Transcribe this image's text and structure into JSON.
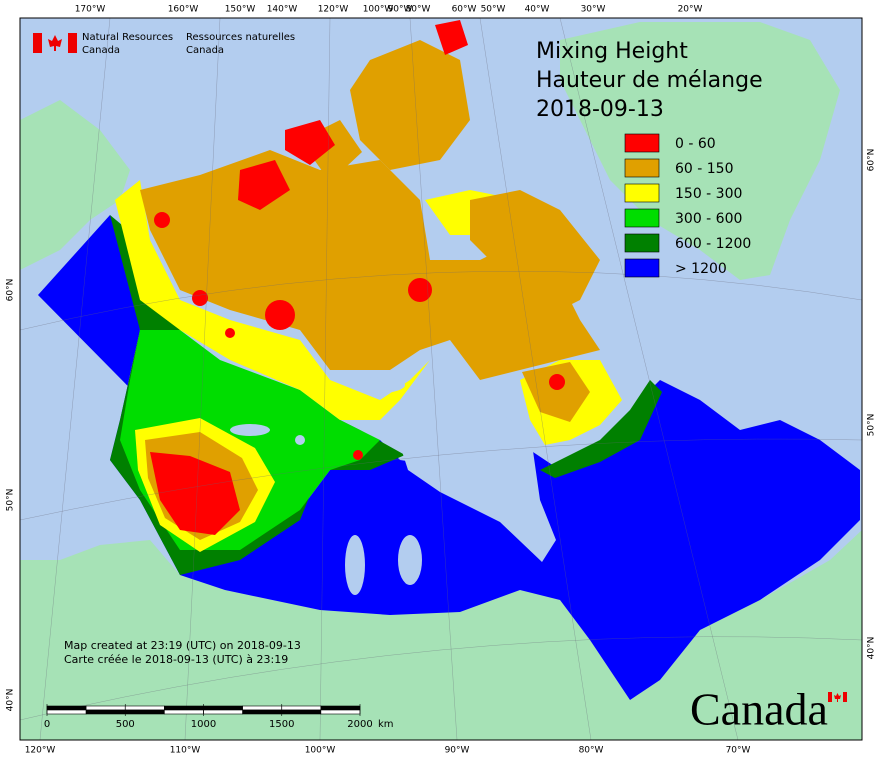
{
  "logo": {
    "en": [
      "Natural Resources",
      "Canada"
    ],
    "fr": [
      "Ressources naturelles",
      "Canada"
    ]
  },
  "title": [
    "Mixing Height",
    "Hauteur de mélange",
    "2018-09-13"
  ],
  "legend": [
    {
      "label": "0 - 60",
      "color": "#ff0000"
    },
    {
      "label": "60 - 150",
      "color": "#e0a000"
    },
    {
      "label": "150 - 300",
      "color": "#ffff00"
    },
    {
      "label": "300 - 600",
      "color": "#00dd00"
    },
    {
      "label": "600 - 1200",
      "color": "#008000"
    },
    {
      "label": "> 1200",
      "color": "#0000ff"
    }
  ],
  "graticule": {
    "top": [
      "170°W",
      "160°W",
      "150°W",
      "140°W",
      "120°W",
      "100°W",
      "90°W",
      "80°W",
      "60°W",
      "50°W",
      "40°W",
      "30°W",
      "20°W"
    ],
    "bottom": [
      "120°W",
      "110°W",
      "100°W",
      "90°W",
      "80°W",
      "70°W"
    ],
    "left": [
      "60°N",
      "50°N",
      "40°N"
    ],
    "right": [
      "60°N",
      "50°N",
      "40°N"
    ]
  },
  "credits": [
    "Map created at 23:19 (UTC) on 2018-09-13",
    "Carte créée le 2018-09-13 (UTC) à 23:19"
  ],
  "scale_bar": {
    "ticks": [
      0,
      500,
      1000,
      1500,
      2000
    ],
    "unit": "km"
  },
  "wordmark": "Canada"
}
